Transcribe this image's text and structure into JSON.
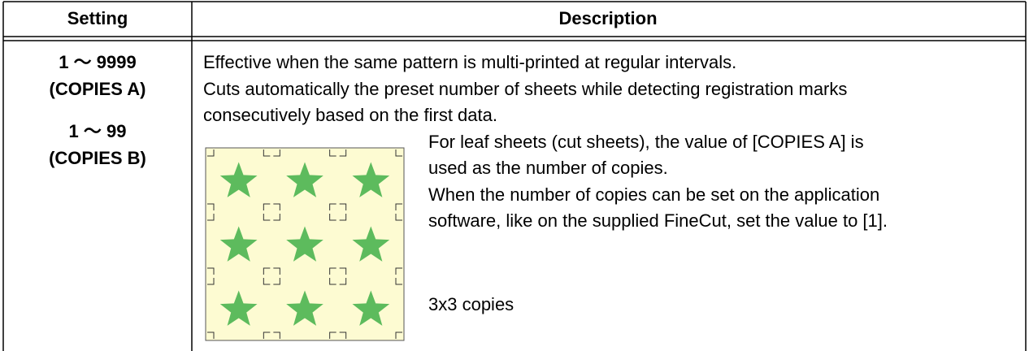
{
  "header": {
    "setting": "Setting",
    "description": "Description"
  },
  "row": {
    "setting": [
      "1 〜 9999",
      "(COPIES A)",
      "1 〜 99",
      "(COPIES B)"
    ],
    "description": [
      "Effective when the same pattern is multi-printed at regular intervals.",
      "Cuts automatically the preset number of sheets while detecting registration marks",
      "consecutively based on the first data."
    ],
    "figure_text": [
      "For leaf sheets (cut sheets), the value of [COPIES A] is",
      "used as the number of copies.",
      "When the number of copies can be set on the application",
      "software, like on the supplied FineCut, set the value to [1]."
    ],
    "figure_caption": "3x3 copies"
  }
}
